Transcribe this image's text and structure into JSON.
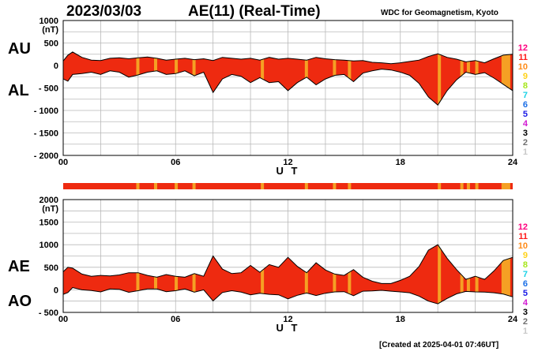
{
  "header": {
    "date": "2023/03/03",
    "title": "AE(11) (Real-Time)",
    "source": "WDC for Geomagnetism, Kyoto"
  },
  "footer": {
    "created": "[Created at 2025-04-01 07:46UT]"
  },
  "colors": {
    "fill_main": "#ee2a10",
    "fill_partial": "#f5a024",
    "bar_main": "#ee2a10",
    "bar_partial": "#f5a024",
    "grid": "#b9b9b9",
    "scale": [
      {
        "label": "12",
        "color": "#ff0080"
      },
      {
        "label": "11",
        "color": "#ff1a1a"
      },
      {
        "label": "10",
        "color": "#ff8c1a"
      },
      {
        "label": "9",
        "color": "#ffd21a"
      },
      {
        "label": "8",
        "color": "#a6e61a"
      },
      {
        "label": "7",
        "color": "#1ad2e6"
      },
      {
        "label": "6",
        "color": "#1a6ee6"
      },
      {
        "label": "5",
        "color": "#1a1ae6"
      },
      {
        "label": "4",
        "color": "#d21ad2"
      },
      {
        "label": "3",
        "color": "#000000"
      },
      {
        "label": "2",
        "color": "#707070"
      },
      {
        "label": "1",
        "color": "#c8c8c8"
      }
    ]
  },
  "chart_data": [
    {
      "type": "area",
      "panel": "AU/AL",
      "upper_label": "AU",
      "lower_label": "AL",
      "unit": "(nT)",
      "xlabel": "U T",
      "xlim": [
        0,
        24
      ],
      "ylim": [
        -2000,
        1000
      ],
      "yticks": [
        "1000",
        "500",
        "0",
        "- 500",
        "- 1000",
        "- 1500",
        "- 2000"
      ],
      "ytick_values": [
        1000,
        500,
        0,
        -500,
        -1000,
        -1500,
        -2000
      ],
      "xticks": [
        "00",
        "06",
        "12",
        "18",
        "24"
      ],
      "xtick_values": [
        0,
        6,
        12,
        18,
        24
      ],
      "grid": true,
      "series": [
        {
          "name": "AU",
          "x": [
            0,
            0.25,
            0.5,
            1,
            1.5,
            2,
            2.5,
            3,
            3.5,
            4,
            4.5,
            5,
            5.5,
            6,
            6.5,
            7,
            7.5,
            8,
            8.5,
            9,
            9.5,
            10,
            10.5,
            11,
            11.5,
            12,
            12.5,
            13,
            13.5,
            14,
            14.5,
            15,
            15.5,
            16,
            16.5,
            17,
            17.5,
            18,
            18.5,
            19,
            19.5,
            20,
            20.5,
            21,
            21.5,
            22,
            22.5,
            23,
            23.5,
            24
          ],
          "values": [
            100,
            230,
            300,
            180,
            120,
            110,
            160,
            170,
            150,
            170,
            190,
            160,
            120,
            140,
            160,
            130,
            150,
            110,
            180,
            160,
            140,
            160,
            120,
            180,
            140,
            160,
            140,
            120,
            180,
            150,
            130,
            120,
            100,
            110,
            70,
            60,
            40,
            60,
            90,
            120,
            200,
            260,
            180,
            140,
            80,
            110,
            60,
            150,
            230,
            250
          ]
        },
        {
          "name": "AL",
          "x": [
            0,
            0.25,
            0.5,
            1,
            1.5,
            2,
            2.5,
            3,
            3.5,
            4,
            4.5,
            5,
            5.5,
            6,
            6.5,
            7,
            7.5,
            8,
            8.5,
            9,
            9.5,
            10,
            10.5,
            11,
            11.5,
            12,
            12.5,
            13,
            13.5,
            14,
            14.5,
            15,
            15.5,
            16,
            16.5,
            17,
            17.5,
            18,
            18.5,
            19,
            19.5,
            20,
            20.5,
            21,
            21.5,
            22,
            22.5,
            23,
            23.5,
            24
          ],
          "values": [
            -300,
            -350,
            -200,
            -180,
            -150,
            -200,
            -120,
            -150,
            -260,
            -210,
            -150,
            -120,
            -200,
            -180,
            -120,
            -230,
            -150,
            -600,
            -300,
            -200,
            -240,
            -380,
            -270,
            -380,
            -360,
            -560,
            -380,
            -260,
            -430,
            -300,
            -220,
            -200,
            -360,
            -170,
            -120,
            -80,
            -100,
            -150,
            -220,
            -400,
            -700,
            -880,
            -560,
            -320,
            -150,
            -200,
            -160,
            -280,
            -420,
            -560
          ]
        }
      ],
      "hour_bar_x": [
        3.9,
        4.85,
        5.95,
        6.9,
        10.55,
        12.9,
        14.4,
        15.2,
        20.0,
        21.2,
        21.55,
        22.0,
        23.4,
        23.55,
        23.7
      ]
    },
    {
      "type": "area",
      "panel": "AE/AO",
      "upper_label": "AE",
      "lower_label": "AO",
      "unit": "(nT)",
      "xlabel": "U T",
      "xlim": [
        0,
        24
      ],
      "ylim": [
        -500,
        2000
      ],
      "yticks": [
        "2000",
        "1500",
        "1000",
        "500",
        "0",
        "- 500"
      ],
      "ytick_values": [
        2000,
        1500,
        1000,
        500,
        0,
        -500
      ],
      "xticks": [
        "00",
        "06",
        "12",
        "18",
        "24"
      ],
      "xtick_values": [
        0,
        6,
        12,
        18,
        24
      ],
      "grid": true,
      "series": [
        {
          "name": "AE",
          "x": [
            0,
            0.25,
            0.5,
            1,
            1.5,
            2,
            2.5,
            3,
            3.5,
            4,
            4.5,
            5,
            5.5,
            6,
            6.5,
            7,
            7.5,
            8,
            8.5,
            9,
            9.5,
            10,
            10.5,
            11,
            11.5,
            12,
            12.5,
            13,
            13.5,
            14,
            14.5,
            15,
            15.5,
            16,
            16.5,
            17,
            17.5,
            18,
            18.5,
            19,
            19.5,
            20,
            20.5,
            21,
            21.5,
            22,
            22.5,
            23,
            23.5,
            24
          ],
          "values": [
            400,
            500,
            480,
            350,
            300,
            320,
            310,
            330,
            380,
            380,
            320,
            280,
            340,
            300,
            280,
            360,
            300,
            750,
            460,
            360,
            380,
            540,
            390,
            560,
            500,
            720,
            520,
            380,
            600,
            440,
            350,
            320,
            450,
            280,
            190,
            140,
            140,
            210,
            300,
            520,
            880,
            1000,
            700,
            450,
            230,
            300,
            230,
            420,
            650,
            720
          ]
        },
        {
          "name": "AO",
          "x": [
            0,
            0.25,
            0.5,
            1,
            1.5,
            2,
            2.5,
            3,
            3.5,
            4,
            4.5,
            5,
            5.5,
            6,
            6.5,
            7,
            7.5,
            8,
            8.5,
            9,
            9.5,
            10,
            10.5,
            11,
            11.5,
            12,
            12.5,
            13,
            13.5,
            14,
            14.5,
            15,
            15.5,
            16,
            16.5,
            17,
            17.5,
            18,
            18.5,
            19,
            19.5,
            20,
            20.5,
            21,
            21.5,
            22,
            22.5,
            23,
            23.5,
            24
          ],
          "values": [
            -100,
            -60,
            50,
            0,
            -15,
            -45,
            20,
            10,
            -55,
            -20,
            20,
            20,
            -40,
            -20,
            20,
            -50,
            0,
            -245,
            -60,
            -20,
            -50,
            -110,
            -75,
            -100,
            -110,
            -200,
            -120,
            -70,
            -125,
            -75,
            -45,
            -40,
            -130,
            -30,
            -25,
            -10,
            -30,
            -45,
            -65,
            -140,
            -250,
            -310,
            -190,
            -90,
            -35,
            -45,
            -50,
            -65,
            -95,
            -155
          ]
        }
      ],
      "hour_bar_x": [
        3.9,
        4.85,
        5.95,
        6.9,
        10.55,
        12.9,
        14.4,
        15.2,
        20.0,
        21.2,
        21.55,
        22.0,
        23.4,
        23.55,
        23.7
      ]
    }
  ]
}
